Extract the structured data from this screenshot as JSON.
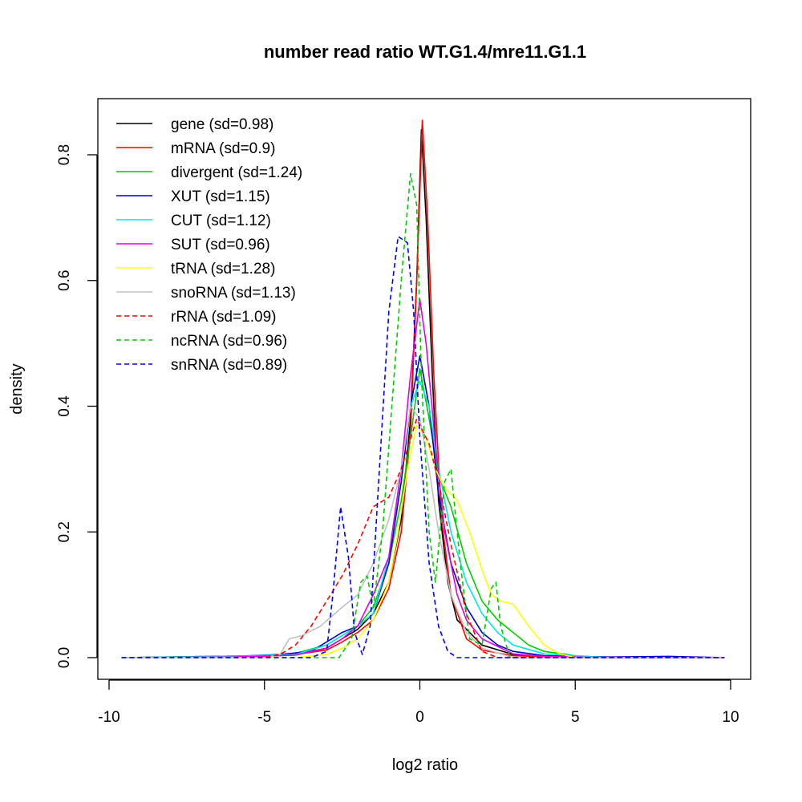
{
  "chart_data": {
    "type": "line",
    "title": "number read ratio WT.G1.4/mre11.G1.1",
    "xlabel": "log2 ratio",
    "ylabel": "density",
    "xlim": [
      -10,
      10
    ],
    "ylim": [
      0,
      0.85
    ],
    "x_ticks": [
      -10,
      -5,
      0,
      5,
      10
    ],
    "x_tick_labels": [
      "-10",
      "-5",
      "0",
      "5",
      "10"
    ],
    "y_ticks": [
      0.0,
      0.2,
      0.4,
      0.6,
      0.8
    ],
    "y_tick_labels": [
      "0.0",
      "0.2",
      "0.4",
      "0.6",
      "0.8"
    ],
    "grid": false,
    "legend_position": "top-left",
    "series": [
      {
        "name": "gene (sd=0.98)",
        "color": "#000000",
        "dash": "solid",
        "points": [
          [
            -9.6,
            0
          ],
          [
            -5,
            0.003
          ],
          [
            -4,
            0.005
          ],
          [
            -3,
            0.015
          ],
          [
            -2.5,
            0.03
          ],
          [
            -2,
            0.045
          ],
          [
            -1.5,
            0.07
          ],
          [
            -1,
            0.12
          ],
          [
            -0.6,
            0.22
          ],
          [
            -0.3,
            0.38
          ],
          [
            -0.1,
            0.6
          ],
          [
            0.05,
            0.84
          ],
          [
            0.2,
            0.7
          ],
          [
            0.4,
            0.45
          ],
          [
            0.6,
            0.25
          ],
          [
            0.9,
            0.12
          ],
          [
            1.2,
            0.06
          ],
          [
            1.4,
            0.05
          ],
          [
            1.6,
            0.04
          ],
          [
            2,
            0.02
          ],
          [
            3,
            0.005
          ],
          [
            4,
            0.002
          ],
          [
            6,
            0
          ],
          [
            9.8,
            0
          ]
        ]
      },
      {
        "name": "mRNA (sd=0.9)",
        "color": "#ff0000",
        "dash": "solid",
        "points": [
          [
            -9.6,
            0
          ],
          [
            -5,
            0.002
          ],
          [
            -4,
            0.005
          ],
          [
            -3,
            0.012
          ],
          [
            -2.5,
            0.025
          ],
          [
            -2,
            0.04
          ],
          [
            -1.5,
            0.06
          ],
          [
            -1,
            0.11
          ],
          [
            -0.6,
            0.2
          ],
          [
            -0.3,
            0.36
          ],
          [
            -0.1,
            0.6
          ],
          [
            0.08,
            0.855
          ],
          [
            0.25,
            0.7
          ],
          [
            0.45,
            0.45
          ],
          [
            0.7,
            0.22
          ],
          [
            1,
            0.1
          ],
          [
            1.5,
            0.03
          ],
          [
            2,
            0.012
          ],
          [
            3,
            0.003
          ],
          [
            5,
            0
          ],
          [
            9.8,
            0
          ]
        ]
      },
      {
        "name": "divergent (sd=1.24)",
        "color": "#00cc00",
        "dash": "solid",
        "points": [
          [
            -9.6,
            0
          ],
          [
            -5,
            0.003
          ],
          [
            -4,
            0.007
          ],
          [
            -3,
            0.02
          ],
          [
            -2.5,
            0.035
          ],
          [
            -2,
            0.05
          ],
          [
            -1.5,
            0.08
          ],
          [
            -1,
            0.15
          ],
          [
            -0.6,
            0.25
          ],
          [
            -0.3,
            0.35
          ],
          [
            0,
            0.46
          ],
          [
            0.3,
            0.38
          ],
          [
            0.6,
            0.29
          ],
          [
            1,
            0.24
          ],
          [
            1.5,
            0.15
          ],
          [
            2,
            0.09
          ],
          [
            2.5,
            0.06
          ],
          [
            3,
            0.04
          ],
          [
            3.5,
            0.02
          ],
          [
            4,
            0.01
          ],
          [
            5,
            0.003
          ],
          [
            6,
            0
          ],
          [
            9.8,
            0
          ]
        ]
      },
      {
        "name": "XUT (sd=1.15)",
        "color": "#0000cc",
        "dash": "solid",
        "points": [
          [
            -9.6,
            0
          ],
          [
            -6,
            0.002
          ],
          [
            -4.5,
            0.005
          ],
          [
            -3.5,
            0.01
          ],
          [
            -3,
            0.025
          ],
          [
            -2.5,
            0.04
          ],
          [
            -2,
            0.05
          ],
          [
            -1.5,
            0.07
          ],
          [
            -1,
            0.15
          ],
          [
            -0.6,
            0.28
          ],
          [
            -0.3,
            0.4
          ],
          [
            0,
            0.48
          ],
          [
            0.3,
            0.4
          ],
          [
            0.6,
            0.26
          ],
          [
            1,
            0.15
          ],
          [
            1.5,
            0.08
          ],
          [
            2,
            0.04
          ],
          [
            2.5,
            0.02
          ],
          [
            3,
            0.01
          ],
          [
            4,
            0.003
          ],
          [
            6,
            0.001
          ],
          [
            8,
            0.002
          ],
          [
            9.8,
            0
          ]
        ]
      },
      {
        "name": "CUT (sd=1.12)",
        "color": "#00e5e5",
        "dash": "solid",
        "points": [
          [
            -9.6,
            0
          ],
          [
            -6,
            0.002
          ],
          [
            -4,
            0.005
          ],
          [
            -3,
            0.02
          ],
          [
            -2.5,
            0.035
          ],
          [
            -2,
            0.05
          ],
          [
            -1.5,
            0.07
          ],
          [
            -1,
            0.16
          ],
          [
            -0.6,
            0.3
          ],
          [
            -0.3,
            0.4
          ],
          [
            0,
            0.44
          ],
          [
            0.3,
            0.4
          ],
          [
            0.6,
            0.3
          ],
          [
            1,
            0.2
          ],
          [
            1.5,
            0.12
          ],
          [
            2,
            0.07
          ],
          [
            2.5,
            0.04
          ],
          [
            3,
            0.02
          ],
          [
            4,
            0.006
          ],
          [
            5,
            0.003
          ],
          [
            6,
            0
          ],
          [
            9.8,
            0
          ]
        ]
      },
      {
        "name": "SUT (sd=0.96)",
        "color": "#e000e0",
        "dash": "solid",
        "points": [
          [
            -9.6,
            0
          ],
          [
            -6,
            0.001
          ],
          [
            -4,
            0.004
          ],
          [
            -3,
            0.015
          ],
          [
            -2.5,
            0.03
          ],
          [
            -2,
            0.05
          ],
          [
            -1.5,
            0.1
          ],
          [
            -1,
            0.16
          ],
          [
            -0.6,
            0.3
          ],
          [
            -0.3,
            0.45
          ],
          [
            0,
            0.57
          ],
          [
            0.2,
            0.5
          ],
          [
            0.5,
            0.34
          ],
          [
            0.8,
            0.2
          ],
          [
            1.2,
            0.1
          ],
          [
            1.5,
            0.06
          ],
          [
            2,
            0.03
          ],
          [
            3,
            0.006
          ],
          [
            4,
            0.002
          ],
          [
            6,
            0
          ],
          [
            9.8,
            0
          ]
        ]
      },
      {
        "name": "tRNA (sd=1.28)",
        "color": "#ffff00",
        "dash": "solid",
        "points": [
          [
            -9.6,
            0
          ],
          [
            -4,
            0
          ],
          [
            -3,
            0.005
          ],
          [
            -2.5,
            0.015
          ],
          [
            -2,
            0.03
          ],
          [
            -1.5,
            0.06
          ],
          [
            -1,
            0.12
          ],
          [
            -0.7,
            0.2
          ],
          [
            -0.4,
            0.3
          ],
          [
            -0.1,
            0.37
          ],
          [
            0.2,
            0.35
          ],
          [
            0.5,
            0.3
          ],
          [
            0.8,
            0.27
          ],
          [
            1.2,
            0.25
          ],
          [
            1.6,
            0.2
          ],
          [
            2,
            0.14
          ],
          [
            2.3,
            0.1
          ],
          [
            2.6,
            0.09
          ],
          [
            3,
            0.085
          ],
          [
            3.5,
            0.05
          ],
          [
            4,
            0.02
          ],
          [
            4.5,
            0.006
          ],
          [
            5,
            0
          ],
          [
            9.8,
            0
          ]
        ]
      },
      {
        "name": "snoRNA (sd=1.13)",
        "color": "#c0c0c0",
        "dash": "solid",
        "points": [
          [
            -9.6,
            0
          ],
          [
            -5,
            0
          ],
          [
            -4.5,
            0.005
          ],
          [
            -4.2,
            0.03
          ],
          [
            -3.8,
            0.035
          ],
          [
            -3.2,
            0.05
          ],
          [
            -2.5,
            0.08
          ],
          [
            -2,
            0.1
          ],
          [
            -1.5,
            0.15
          ],
          [
            -1,
            0.22
          ],
          [
            -0.6,
            0.3
          ],
          [
            -0.3,
            0.4
          ],
          [
            0,
            0.38
          ],
          [
            0.3,
            0.3
          ],
          [
            0.6,
            0.2
          ],
          [
            1,
            0.1
          ],
          [
            1.5,
            0.04
          ],
          [
            2,
            0.015
          ],
          [
            3,
            0
          ],
          [
            9.8,
            0
          ]
        ]
      },
      {
        "name": "rRNA (sd=1.09)",
        "color": "#ff0000",
        "dash": "dashed",
        "points": [
          [
            -9.6,
            0
          ],
          [
            -5,
            0
          ],
          [
            -4.5,
            0.005
          ],
          [
            -4,
            0.02
          ],
          [
            -3.5,
            0.05
          ],
          [
            -3,
            0.09
          ],
          [
            -2.5,
            0.13
          ],
          [
            -2,
            0.18
          ],
          [
            -1.5,
            0.24
          ],
          [
            -1,
            0.255
          ],
          [
            -0.6,
            0.3
          ],
          [
            -0.1,
            0.38
          ],
          [
            0.3,
            0.34
          ],
          [
            0.6,
            0.28
          ],
          [
            1,
            0.18
          ],
          [
            1.5,
            0.07
          ],
          [
            2,
            0.01
          ],
          [
            2.5,
            0
          ],
          [
            9.8,
            0
          ]
        ]
      },
      {
        "name": "ncRNA (sd=0.96)",
        "color": "#00cc00",
        "dash": "dashed",
        "points": [
          [
            -9.6,
            0
          ],
          [
            -4,
            0
          ],
          [
            -2.6,
            0
          ],
          [
            -2.2,
            0.03
          ],
          [
            -1.9,
            0.12
          ],
          [
            -1.7,
            0.13
          ],
          [
            -1.5,
            0.08
          ],
          [
            -1.2,
            0.2
          ],
          [
            -0.9,
            0.4
          ],
          [
            -0.6,
            0.6
          ],
          [
            -0.3,
            0.77
          ],
          [
            -0.1,
            0.72
          ],
          [
            0.05,
            0.45
          ],
          [
            0.3,
            0.2
          ],
          [
            0.5,
            0.12
          ],
          [
            0.8,
            0.28
          ],
          [
            1,
            0.3
          ],
          [
            1.3,
            0.15
          ],
          [
            1.6,
            0.03
          ],
          [
            2,
            0.02
          ],
          [
            2.3,
            0.11
          ],
          [
            2.45,
            0.12
          ],
          [
            2.6,
            0.05
          ],
          [
            2.9,
            0
          ],
          [
            9.8,
            0
          ]
        ]
      },
      {
        "name": "snRNA (sd=0.89)",
        "color": "#0000ff",
        "dash": "dashed",
        "points": [
          [
            -9.6,
            0
          ],
          [
            -3.5,
            0
          ],
          [
            -3,
            0.01
          ],
          [
            -2.8,
            0.1
          ],
          [
            -2.55,
            0.24
          ],
          [
            -2.3,
            0.16
          ],
          [
            -2.1,
            0.04
          ],
          [
            -1.85,
            0.005
          ],
          [
            -1.6,
            0.05
          ],
          [
            -1.3,
            0.3
          ],
          [
            -1,
            0.55
          ],
          [
            -0.7,
            0.67
          ],
          [
            -0.4,
            0.66
          ],
          [
            -0.2,
            0.55
          ],
          [
            0,
            0.35
          ],
          [
            0.3,
            0.15
          ],
          [
            0.6,
            0.05
          ],
          [
            0.9,
            0.01
          ],
          [
            1.2,
            0
          ],
          [
            9.8,
            0
          ]
        ]
      }
    ]
  }
}
